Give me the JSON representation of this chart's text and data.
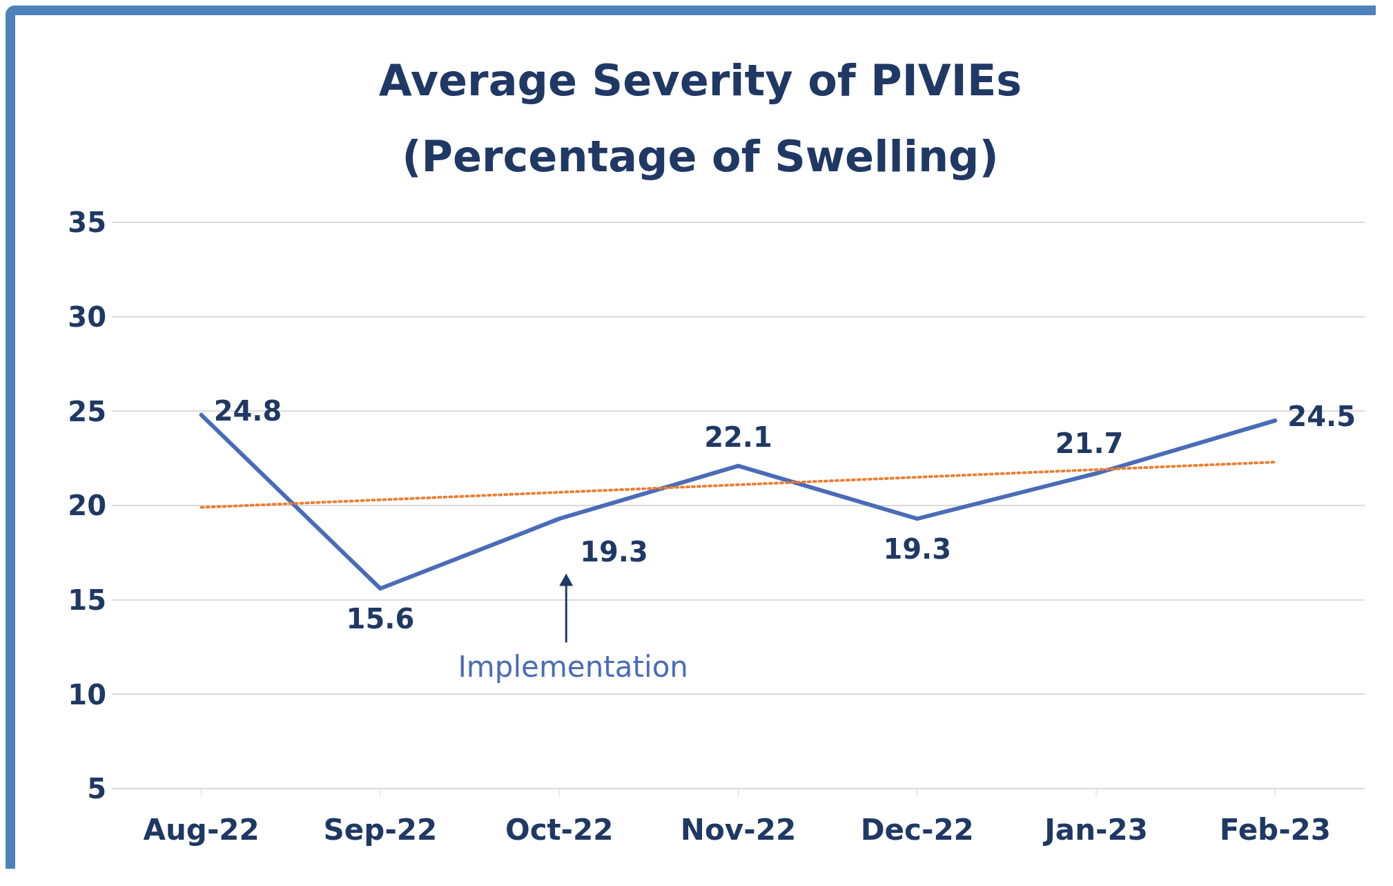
{
  "chart_data": {
    "type": "line",
    "title": "Average Severity of PIVIEs\n(Percentage of Swelling)",
    "categories": [
      "Aug-22",
      "Sep-22",
      "Oct-22",
      "Nov-22",
      "Dec-22",
      "Jan-23",
      "Feb-23"
    ],
    "series": [
      {
        "color": "#4a6cb8",
        "values": [
          24.8,
          15.6,
          19.3,
          22.1,
          19.3,
          21.7,
          24.5
        ],
        "value_labels": [
          "24.8",
          "15.6",
          "19.3",
          "22.1",
          "19.3",
          "21.7",
          "24.5"
        ]
      },
      {
        "type": "line",
        "color": "#ed7d31",
        "line_style": "dotted",
        "x": [
          "Aug-22",
          "Feb-23"
        ],
        "values": [
          19.9,
          22.3
        ]
      }
    ],
    "ylim": [
      5,
      35
    ],
    "yticks": [
      5,
      10,
      15,
      20,
      25,
      30,
      35
    ],
    "grid": "y",
    "marker": "none",
    "line_style": "solid",
    "annotations": [
      "Implementation"
    ]
  }
}
